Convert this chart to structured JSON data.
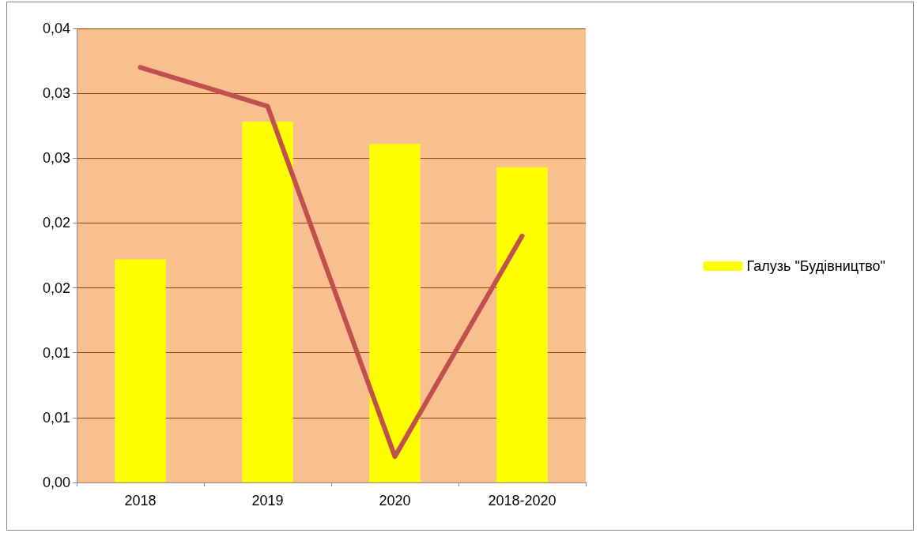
{
  "chart_data": {
    "type": "bar",
    "categories": [
      "2018",
      "2019",
      "2020",
      "2018-2020"
    ],
    "series": [
      {
        "name": "Галузь \"Будівництво\"",
        "color": "#ffff00",
        "values": [
          0.0172,
          0.0278,
          0.0261,
          0.0243
        ]
      },
      {
        "type": "line",
        "color": "#c0504d",
        "values": [
          0.032,
          0.029,
          0.002,
          0.019
        ]
      }
    ],
    "ylim": [
      0,
      0.035
    ],
    "yticks": [
      {
        "value": 0,
        "label": "0,00"
      },
      {
        "value": 0.005,
        "label": "0,01"
      },
      {
        "value": 0.01,
        "label": "0,01"
      },
      {
        "value": 0.015,
        "label": "0,02"
      },
      {
        "value": 0.02,
        "label": "0,02"
      },
      {
        "value": 0.025,
        "label": "0,03"
      },
      {
        "value": 0.03,
        "label": "0,03"
      },
      {
        "value": 0.035,
        "label": "0,04"
      }
    ],
    "grid": "y",
    "legend": "right",
    "marker": "none",
    "line_style": "solid"
  }
}
